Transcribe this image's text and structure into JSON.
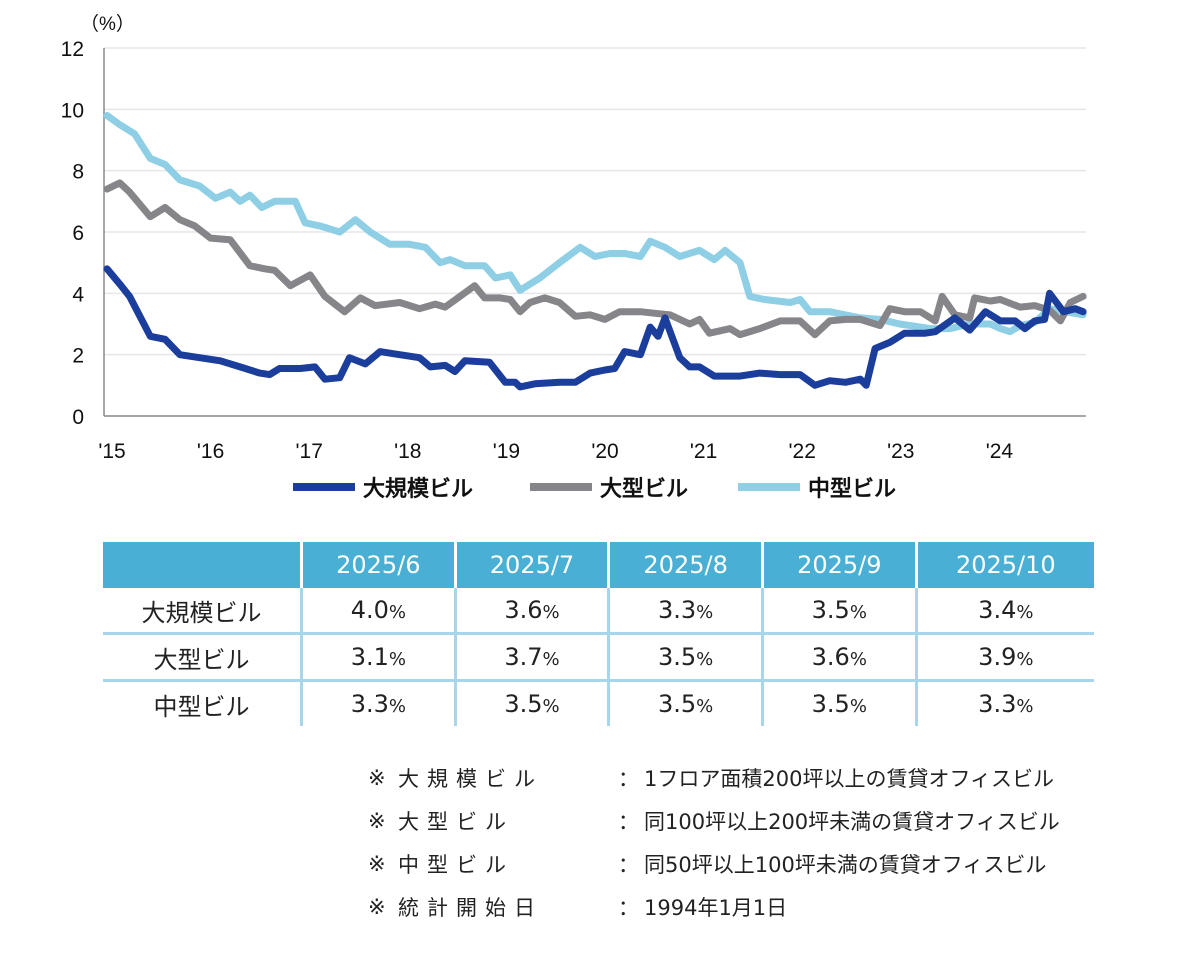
{
  "chart_data": {
    "type": "line",
    "ylabel": "（%）",
    "ylim": [
      0,
      12
    ],
    "yticks": [
      0,
      2,
      4,
      6,
      8,
      10,
      12
    ],
    "xlim": [
      2015,
      2025
    ],
    "xticks": [
      {
        "x": 2015,
        "label": "'15"
      },
      {
        "x": 2016,
        "label": "'16"
      },
      {
        "x": 2017,
        "label": "'17"
      },
      {
        "x": 2018,
        "label": "'18"
      },
      {
        "x": 2019,
        "label": "'19"
      },
      {
        "x": 2020,
        "label": "'20"
      },
      {
        "x": 2021,
        "label": "'21"
      },
      {
        "x": 2022,
        "label": "'22"
      },
      {
        "x": 2023,
        "label": "'23"
      },
      {
        "x": 2024,
        "label": "'24"
      }
    ],
    "grid": true,
    "legend_position": "bottom",
    "series": [
      {
        "name": "大規模ビル",
        "color": "#1b3d9c",
        "points": [
          [
            2015.03,
            4.8
          ],
          [
            2015.16,
            4.3
          ],
          [
            2015.26,
            3.9
          ],
          [
            2015.47,
            2.6
          ],
          [
            2015.62,
            2.5
          ],
          [
            2015.77,
            2.0
          ],
          [
            2015.97,
            1.9
          ],
          [
            2016.18,
            1.8
          ],
          [
            2016.38,
            1.6
          ],
          [
            2016.58,
            1.4
          ],
          [
            2016.68,
            1.35
          ],
          [
            2016.78,
            1.55
          ],
          [
            2016.99,
            1.55
          ],
          [
            2017.14,
            1.6
          ],
          [
            2017.24,
            1.2
          ],
          [
            2017.39,
            1.25
          ],
          [
            2017.49,
            1.9
          ],
          [
            2017.65,
            1.7
          ],
          [
            2017.8,
            2.1
          ],
          [
            2018.0,
            2.0
          ],
          [
            2018.2,
            1.9
          ],
          [
            2018.31,
            1.6
          ],
          [
            2018.46,
            1.65
          ],
          [
            2018.56,
            1.45
          ],
          [
            2018.66,
            1.8
          ],
          [
            2018.91,
            1.75
          ],
          [
            2019.07,
            1.1
          ],
          [
            2019.17,
            1.1
          ],
          [
            2019.22,
            0.95
          ],
          [
            2019.37,
            1.05
          ],
          [
            2019.62,
            1.1
          ],
          [
            2019.78,
            1.1
          ],
          [
            2019.93,
            1.4
          ],
          [
            2020.08,
            1.5
          ],
          [
            2020.18,
            1.55
          ],
          [
            2020.28,
            2.1
          ],
          [
            2020.44,
            2.0
          ],
          [
            2020.54,
            2.9
          ],
          [
            2020.62,
            2.6
          ],
          [
            2020.69,
            3.2
          ],
          [
            2020.84,
            1.9
          ],
          [
            2020.94,
            1.6
          ],
          [
            2021.04,
            1.6
          ],
          [
            2021.19,
            1.3
          ],
          [
            2021.45,
            1.3
          ],
          [
            2021.65,
            1.4
          ],
          [
            2021.86,
            1.35
          ],
          [
            2022.06,
            1.35
          ],
          [
            2022.21,
            1.0
          ],
          [
            2022.36,
            1.15
          ],
          [
            2022.52,
            1.1
          ],
          [
            2022.67,
            1.2
          ],
          [
            2022.73,
            1.0
          ],
          [
            2022.82,
            2.2
          ],
          [
            2022.97,
            2.4
          ],
          [
            2023.12,
            2.7
          ],
          [
            2023.33,
            2.7
          ],
          [
            2023.43,
            2.75
          ],
          [
            2023.63,
            3.2
          ],
          [
            2023.78,
            2.8
          ],
          [
            2023.94,
            3.4
          ],
          [
            2024.09,
            3.1
          ],
          [
            2024.24,
            3.1
          ],
          [
            2024.34,
            2.85
          ],
          [
            2024.44,
            3.1
          ],
          [
            2024.54,
            3.15
          ],
          [
            2024.59,
            4.0
          ],
          [
            2024.73,
            3.4
          ],
          [
            2024.85,
            3.5
          ],
          [
            2024.93,
            3.4
          ]
        ]
      },
      {
        "name": "大型ビル",
        "color": "#86868a",
        "points": [
          [
            2015.03,
            7.4
          ],
          [
            2015.16,
            7.6
          ],
          [
            2015.26,
            7.3
          ],
          [
            2015.47,
            6.5
          ],
          [
            2015.62,
            6.8
          ],
          [
            2015.77,
            6.4
          ],
          [
            2015.92,
            6.2
          ],
          [
            2016.08,
            5.8
          ],
          [
            2016.28,
            5.75
          ],
          [
            2016.48,
            4.9
          ],
          [
            2016.63,
            4.8
          ],
          [
            2016.73,
            4.75
          ],
          [
            2016.89,
            4.25
          ],
          [
            2017.09,
            4.6
          ],
          [
            2017.24,
            3.9
          ],
          [
            2017.44,
            3.4
          ],
          [
            2017.6,
            3.85
          ],
          [
            2017.75,
            3.6
          ],
          [
            2018.0,
            3.7
          ],
          [
            2018.2,
            3.5
          ],
          [
            2018.36,
            3.65
          ],
          [
            2018.46,
            3.55
          ],
          [
            2018.61,
            3.9
          ],
          [
            2018.76,
            4.25
          ],
          [
            2018.86,
            3.85
          ],
          [
            2019.02,
            3.85
          ],
          [
            2019.12,
            3.8
          ],
          [
            2019.22,
            3.4
          ],
          [
            2019.32,
            3.7
          ],
          [
            2019.47,
            3.85
          ],
          [
            2019.62,
            3.7
          ],
          [
            2019.78,
            3.25
          ],
          [
            2019.93,
            3.3
          ],
          [
            2020.08,
            3.15
          ],
          [
            2020.23,
            3.4
          ],
          [
            2020.44,
            3.4
          ],
          [
            2020.59,
            3.35
          ],
          [
            2020.74,
            3.3
          ],
          [
            2020.94,
            3.0
          ],
          [
            2021.04,
            3.15
          ],
          [
            2021.14,
            2.7
          ],
          [
            2021.35,
            2.85
          ],
          [
            2021.45,
            2.65
          ],
          [
            2021.65,
            2.85
          ],
          [
            2021.86,
            3.1
          ],
          [
            2022.06,
            3.1
          ],
          [
            2022.21,
            2.65
          ],
          [
            2022.36,
            3.1
          ],
          [
            2022.52,
            3.15
          ],
          [
            2022.67,
            3.15
          ],
          [
            2022.87,
            2.95
          ],
          [
            2022.97,
            3.5
          ],
          [
            2023.12,
            3.4
          ],
          [
            2023.28,
            3.4
          ],
          [
            2023.43,
            3.1
          ],
          [
            2023.5,
            3.9
          ],
          [
            2023.63,
            3.3
          ],
          [
            2023.78,
            3.2
          ],
          [
            2023.83,
            3.85
          ],
          [
            2023.99,
            3.75
          ],
          [
            2024.09,
            3.8
          ],
          [
            2024.29,
            3.55
          ],
          [
            2024.44,
            3.6
          ],
          [
            2024.59,
            3.45
          ],
          [
            2024.7,
            3.1
          ],
          [
            2024.8,
            3.7
          ],
          [
            2024.93,
            3.9
          ]
        ]
      },
      {
        "name": "中型ビル",
        "color": "#8ecfe5",
        "points": [
          [
            2015.03,
            9.8
          ],
          [
            2015.16,
            9.5
          ],
          [
            2015.31,
            9.2
          ],
          [
            2015.47,
            8.4
          ],
          [
            2015.62,
            8.2
          ],
          [
            2015.77,
            7.7
          ],
          [
            2015.97,
            7.5
          ],
          [
            2016.13,
            7.1
          ],
          [
            2016.28,
            7.3
          ],
          [
            2016.38,
            7.0
          ],
          [
            2016.48,
            7.2
          ],
          [
            2016.6,
            6.8
          ],
          [
            2016.73,
            7.0
          ],
          [
            2016.94,
            7.0
          ],
          [
            2017.04,
            6.3
          ],
          [
            2017.19,
            6.2
          ],
          [
            2017.39,
            6.0
          ],
          [
            2017.55,
            6.4
          ],
          [
            2017.7,
            6.0
          ],
          [
            2017.9,
            5.6
          ],
          [
            2018.1,
            5.6
          ],
          [
            2018.26,
            5.5
          ],
          [
            2018.41,
            5.0
          ],
          [
            2018.51,
            5.1
          ],
          [
            2018.66,
            4.9
          ],
          [
            2018.86,
            4.9
          ],
          [
            2018.97,
            4.5
          ],
          [
            2019.12,
            4.6
          ],
          [
            2019.22,
            4.1
          ],
          [
            2019.42,
            4.5
          ],
          [
            2019.62,
            5.0
          ],
          [
            2019.83,
            5.5
          ],
          [
            2019.98,
            5.2
          ],
          [
            2020.13,
            5.3
          ],
          [
            2020.28,
            5.3
          ],
          [
            2020.44,
            5.2
          ],
          [
            2020.54,
            5.7
          ],
          [
            2020.69,
            5.5
          ],
          [
            2020.84,
            5.2
          ],
          [
            2021.04,
            5.4
          ],
          [
            2021.19,
            5.1
          ],
          [
            2021.3,
            5.4
          ],
          [
            2021.45,
            5.0
          ],
          [
            2021.55,
            3.9
          ],
          [
            2021.7,
            3.8
          ],
          [
            2021.96,
            3.7
          ],
          [
            2022.06,
            3.8
          ],
          [
            2022.16,
            3.4
          ],
          [
            2022.36,
            3.4
          ],
          [
            2022.67,
            3.2
          ],
          [
            2022.87,
            3.15
          ],
          [
            2023.07,
            3.0
          ],
          [
            2023.38,
            2.85
          ],
          [
            2023.58,
            2.85
          ],
          [
            2023.78,
            3.0
          ],
          [
            2023.99,
            3.0
          ],
          [
            2024.09,
            2.85
          ],
          [
            2024.19,
            2.75
          ],
          [
            2024.29,
            2.95
          ],
          [
            2024.44,
            3.05
          ],
          [
            2024.59,
            3.5
          ],
          [
            2024.75,
            3.4
          ],
          [
            2024.93,
            3.3
          ]
        ]
      }
    ]
  },
  "table": {
    "columns": [
      "",
      "2025/6",
      "2025/7",
      "2025/8",
      "2025/9",
      "2025/10"
    ],
    "rows": [
      {
        "label": "大規模ビル",
        "values": [
          "4.0",
          "3.6",
          "3.3",
          "3.5",
          "3.4"
        ]
      },
      {
        "label": "大型ビル",
        "values": [
          "3.1",
          "3.7",
          "3.5",
          "3.6",
          "3.9"
        ]
      },
      {
        "label": "中型ビル",
        "values": [
          "3.3",
          "3.5",
          "3.5",
          "3.5",
          "3.3"
        ]
      }
    ],
    "unit": "%"
  },
  "notes": [
    {
      "mark": "※",
      "label": "大規模ビル",
      "text": "1フロア面積200坪以上の賃貸オフィスビル"
    },
    {
      "mark": "※",
      "label": "大型ビル",
      "text": "同100坪以上200坪未満の賃貸オフィスビル"
    },
    {
      "mark": "※",
      "label": "中型ビル",
      "text": "同50坪以上100坪未満の賃貸オフィスビル"
    },
    {
      "mark": "※",
      "label": "統計開始日",
      "text": "1994年1月1日"
    }
  ],
  "colon": "："
}
